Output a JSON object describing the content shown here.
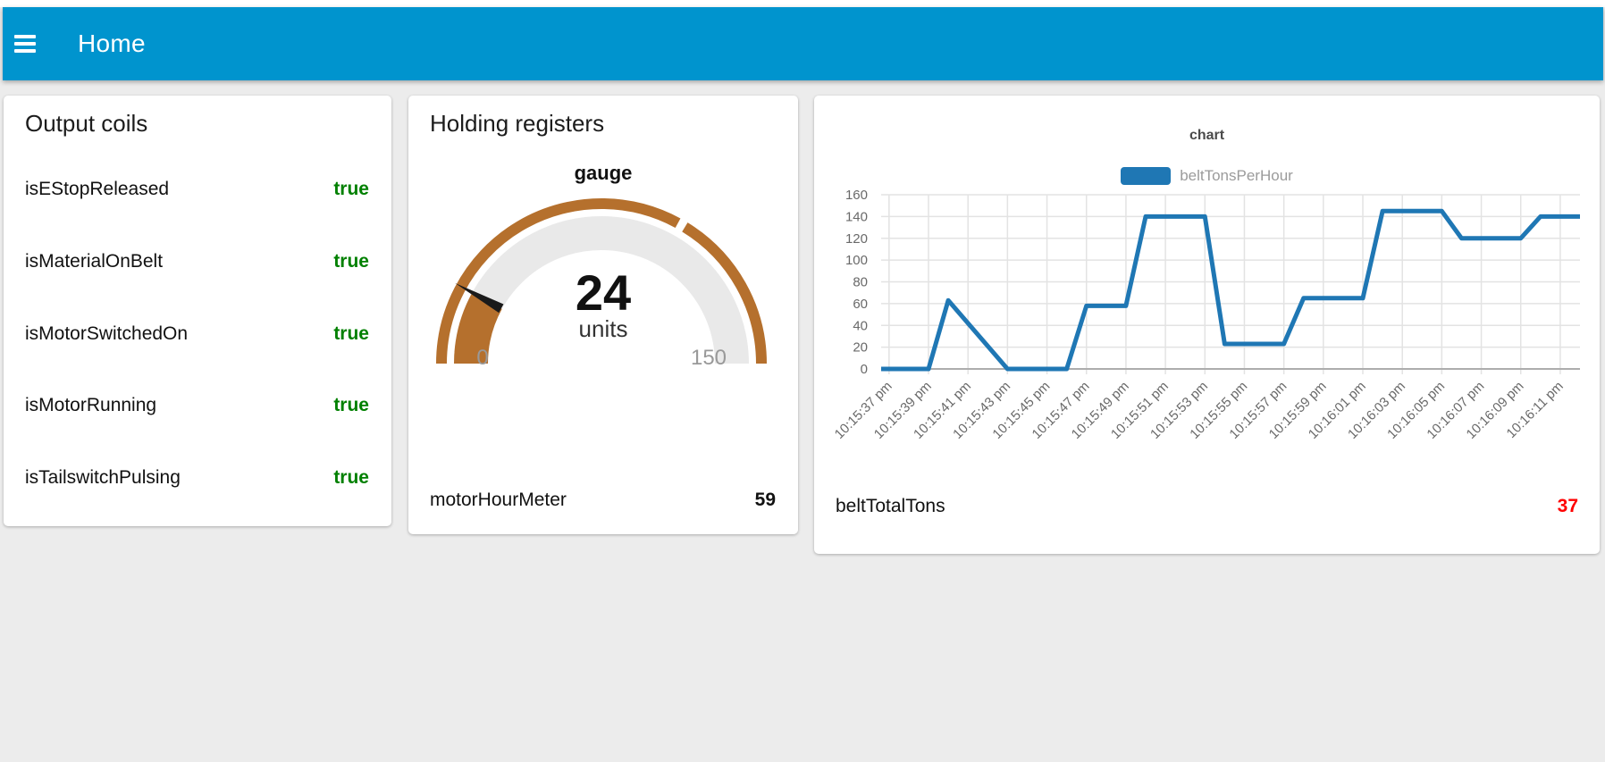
{
  "header": {
    "title": "Home",
    "menu_icon": "hamburger-menu-icon",
    "color": "#0094CE"
  },
  "cards": {
    "output_coils": {
      "title": "Output coils",
      "value_color": "#008000",
      "rows": [
        {
          "label": "isEStopReleased",
          "value": "true"
        },
        {
          "label": "isMaterialOnBelt",
          "value": "true"
        },
        {
          "label": "isMotorSwitchedOn",
          "value": "true"
        },
        {
          "label": "isMotorRunning",
          "value": "true"
        },
        {
          "label": "isTailswitchPulsing",
          "value": "true"
        }
      ]
    },
    "holding_registers": {
      "title": "Holding registers",
      "gauge": {
        "label": "gauge",
        "value": 24,
        "units": "units",
        "min": 0,
        "max": 150,
        "min_label": "0",
        "max_label": "150",
        "seg_gap_at": 100,
        "color": "#B5702D",
        "track_color": "#E9E9E9",
        "needle_color": "#1a1a1a"
      },
      "rows": [
        {
          "label": "motorHourMeter",
          "value": "59"
        }
      ]
    },
    "chart_card": {
      "rows": [
        {
          "label": "beltTotalTons",
          "value": "37",
          "value_color": "#FF0000"
        }
      ]
    }
  },
  "chart_data": {
    "type": "line",
    "title": "chart",
    "legend_position": "top",
    "grid": true,
    "ylim": [
      0,
      160
    ],
    "y_ticks": [
      0,
      20,
      40,
      60,
      80,
      100,
      120,
      140,
      160
    ],
    "x_range": [
      "10:15:36.6",
      "10:16:12"
    ],
    "x_tick_labels": [
      "10:15:37 pm",
      "10:15:39 pm",
      "10:15:41 pm",
      "10:15:43 pm",
      "10:15:45 pm",
      "10:15:47 pm",
      "10:15:49 pm",
      "10:15:51 pm",
      "10:15:53 pm",
      "10:15:55 pm",
      "10:15:57 pm",
      "10:15:59 pm",
      "10:16:01 pm",
      "10:16:03 pm",
      "10:16:05 pm",
      "10:16:07 pm",
      "10:16:09 pm",
      "10:16:11 pm"
    ],
    "series": [
      {
        "name": "beltTonsPerHour",
        "color": "#1F77B4",
        "points": [
          [
            "10:15:36.6",
            0
          ],
          [
            "10:15:39",
            0
          ],
          [
            "10:15:40",
            63
          ],
          [
            "10:15:43",
            0
          ],
          [
            "10:15:46",
            0
          ],
          [
            "10:15:47",
            58
          ],
          [
            "10:15:49",
            58
          ],
          [
            "10:15:50",
            140
          ],
          [
            "10:15:53",
            140
          ],
          [
            "10:15:54",
            23
          ],
          [
            "10:15:57",
            23
          ],
          [
            "10:15:58",
            65
          ],
          [
            "10:16:01",
            65
          ],
          [
            "10:16:02",
            145
          ],
          [
            "10:16:05",
            145
          ],
          [
            "10:16:06",
            120
          ],
          [
            "10:16:09",
            120
          ],
          [
            "10:16:10",
            140
          ],
          [
            "10:16:12",
            140
          ]
        ]
      }
    ]
  }
}
